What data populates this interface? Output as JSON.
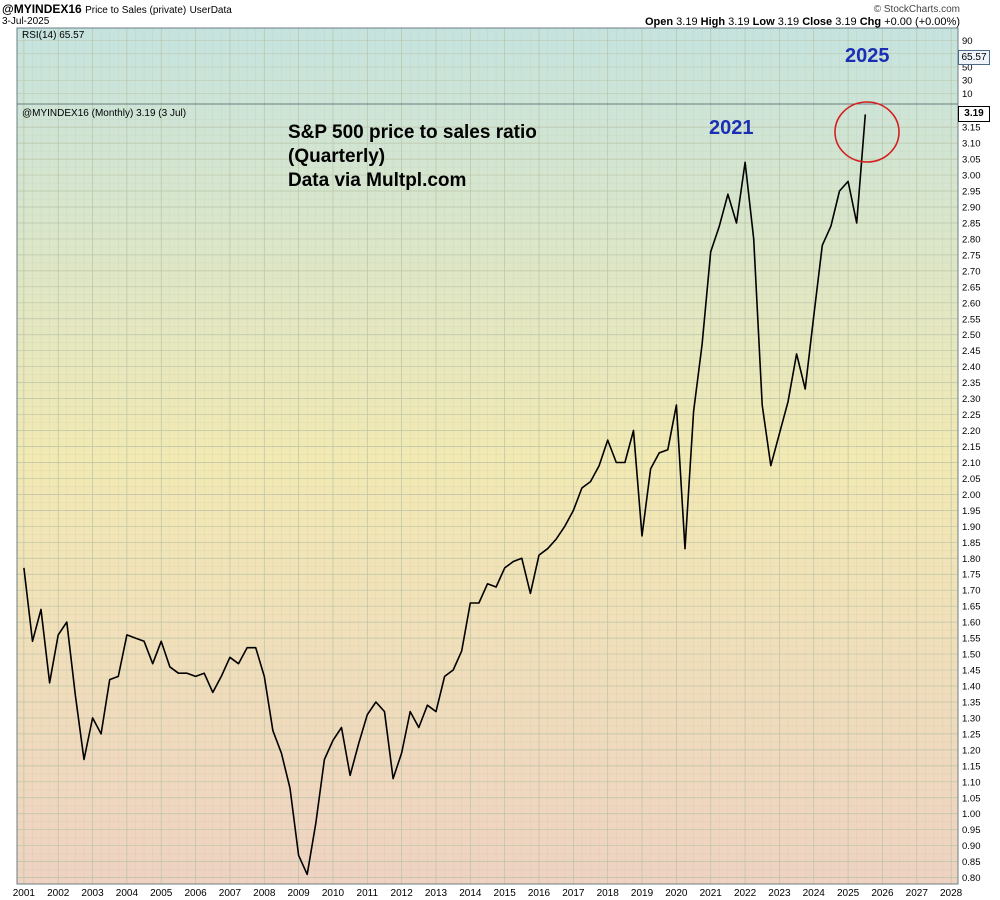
{
  "header": {
    "symbol": "@MYINDEX16",
    "description": "Price to Sales (private)",
    "source": "UserData",
    "date": "3-Jul-2025",
    "brand": "© StockCharts.com",
    "ohlc": {
      "open_label": "Open",
      "open": "3.19",
      "high_label": "High",
      "high": "3.19",
      "low_label": "Low",
      "low": "3.19",
      "close_label": "Close",
      "close": "3.19",
      "chg_label": "Chg",
      "chg": "+0.00 (+0.00%)"
    }
  },
  "rsi_panel": {
    "label": "RSI(14) 65.57",
    "value_tag": "65.57",
    "ticks": [
      "90",
      "70",
      "50",
      "30",
      "10"
    ]
  },
  "main_panel": {
    "label": "@MYINDEX16 (Monthly) 3.19 (3 Jul)",
    "price_tag": "3.19"
  },
  "annotations": {
    "title_line1": "S&P 500 price to sales ratio",
    "title_line2": "(Quarterly)",
    "title_line3": "Data via Multpl.com",
    "label_2021": "2021",
    "label_2025": "2025"
  },
  "colors": {
    "line": "#000000",
    "grid": "#b9c4a6",
    "circle": "#d42020",
    "annotation_blue": "#1a2fb4",
    "bg_top": "#c5e3df",
    "bg_mid": "#f2e9b3",
    "bg_bottom": "#efd2c2"
  },
  "chart_data": {
    "type": "line",
    "ylim": [
      0.78,
      3.21
    ],
    "y_ticks": [
      "0.80",
      "0.85",
      "0.90",
      "0.95",
      "1.00",
      "1.05",
      "1.10",
      "1.15",
      "1.20",
      "1.25",
      "1.30",
      "1.35",
      "1.40",
      "1.45",
      "1.50",
      "1.55",
      "1.60",
      "1.65",
      "1.70",
      "1.75",
      "1.80",
      "1.85",
      "1.90",
      "1.95",
      "2.00",
      "2.05",
      "2.10",
      "2.15",
      "2.20",
      "2.25",
      "2.30",
      "2.35",
      "2.40",
      "2.45",
      "2.50",
      "2.55",
      "2.60",
      "2.65",
      "2.70",
      "2.75",
      "2.80",
      "2.85",
      "2.90",
      "2.95",
      "3.00",
      "3.05",
      "3.10",
      "3.15"
    ],
    "x_ticks": [
      "2001",
      "2002",
      "2003",
      "2004",
      "2005",
      "2006",
      "2007",
      "2008",
      "2009",
      "2010",
      "2011",
      "2012",
      "2013",
      "2014",
      "2015",
      "2016",
      "2017",
      "2018",
      "2019",
      "2020",
      "2021",
      "2022",
      "2023",
      "2024",
      "2025",
      "2026",
      "2027",
      "2028"
    ],
    "xlim": [
      2000.8,
      2028.2
    ],
    "series": [
      {
        "x": [
          2001.0,
          2001.25,
          2001.5,
          2001.75,
          2002.0,
          2002.25,
          2002.5,
          2002.75,
          2003.0,
          2003.25,
          2003.5,
          2003.75,
          2004.0,
          2004.25,
          2004.5,
          2004.75,
          2005.0,
          2005.25,
          2005.5,
          2005.75,
          2006.0,
          2006.25,
          2006.5,
          2006.75,
          2007.0,
          2007.25,
          2007.5,
          2007.75,
          2008.0,
          2008.25,
          2008.5,
          2008.75,
          2009.0,
          2009.25,
          2009.5,
          2009.75,
          2010.0,
          2010.25,
          2010.5,
          2010.75,
          2011.0,
          2011.25,
          2011.5,
          2011.75,
          2012.0,
          2012.25,
          2012.5,
          2012.75,
          2013.0,
          2013.25,
          2013.5,
          2013.75,
          2014.0,
          2014.25,
          2014.5,
          2014.75,
          2015.0,
          2015.25,
          2015.5,
          2015.75,
          2016.0,
          2016.25,
          2016.5,
          2016.75,
          2017.0,
          2017.25,
          2017.5,
          2017.75,
          2018.0,
          2018.25,
          2018.5,
          2018.75,
          2019.0,
          2019.25,
          2019.5,
          2019.75,
          2020.0,
          2020.25,
          2020.5,
          2020.75,
          2021.0,
          2021.25,
          2021.5,
          2021.75,
          2022.0,
          2022.25,
          2022.5,
          2022.75,
          2023.0,
          2023.25,
          2023.5,
          2023.75,
          2024.0,
          2024.25,
          2024.5,
          2024.75,
          2025.0,
          2025.25,
          2025.5
        ],
        "values": [
          1.77,
          1.54,
          1.64,
          1.41,
          1.56,
          1.6,
          1.37,
          1.17,
          1.3,
          1.25,
          1.42,
          1.43,
          1.56,
          1.55,
          1.54,
          1.47,
          1.54,
          1.46,
          1.44,
          1.44,
          1.43,
          1.44,
          1.38,
          1.43,
          1.49,
          1.47,
          1.52,
          1.52,
          1.43,
          1.26,
          1.19,
          1.08,
          0.87,
          0.81,
          0.97,
          1.17,
          1.23,
          1.27,
          1.12,
          1.22,
          1.31,
          1.35,
          1.32,
          1.11,
          1.19,
          1.32,
          1.27,
          1.34,
          1.32,
          1.43,
          1.45,
          1.51,
          1.66,
          1.66,
          1.72,
          1.71,
          1.77,
          1.79,
          1.8,
          1.69,
          1.81,
          1.83,
          1.86,
          1.9,
          1.95,
          2.02,
          2.04,
          2.09,
          2.17,
          2.1,
          2.1,
          2.2,
          1.87,
          2.08,
          2.13,
          2.14,
          2.28,
          1.83,
          2.26,
          2.47,
          2.76,
          2.84,
          2.94,
          2.85,
          3.04,
          2.8,
          2.28,
          2.09,
          2.19,
          2.29,
          2.44,
          2.33,
          2.56,
          2.78,
          2.84,
          2.95,
          2.98,
          2.85,
          3.19
        ]
      }
    ]
  }
}
